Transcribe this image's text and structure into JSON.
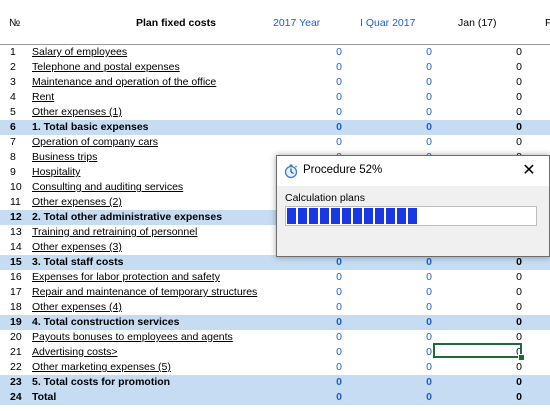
{
  "header": {
    "no": "№",
    "name": "Plan fixed costs",
    "col1": "2017 Year",
    "col2": "I Quar 2017",
    "col3": "Jan (17)",
    "col4": "F"
  },
  "rows": [
    {
      "no": "1",
      "name": "Salary of employees",
      "v1": "0",
      "v2": "0",
      "v3": "0",
      "bold": false
    },
    {
      "no": "2",
      "name": "Telephone and postal expenses",
      "v1": "0",
      "v2": "0",
      "v3": "0",
      "bold": false
    },
    {
      "no": "3",
      "name": "Maintenance and operation of the office",
      "v1": "0",
      "v2": "0",
      "v3": "0",
      "bold": false
    },
    {
      "no": "4",
      "name": "Rent",
      "v1": "0",
      "v2": "0",
      "v3": "0",
      "bold": false
    },
    {
      "no": "5",
      "name": "Other expenses (1)",
      "v1": "0",
      "v2": "0",
      "v3": "0",
      "bold": false
    },
    {
      "no": "6",
      "name": "1. Total basic expenses",
      "v1": "0",
      "v2": "0",
      "v3": "0",
      "bold": true
    },
    {
      "no": "7",
      "name": "Operation of company cars",
      "v1": "0",
      "v2": "0",
      "v3": "0",
      "bold": false
    },
    {
      "no": "8",
      "name": "Business trips",
      "v1": "0",
      "v2": "0",
      "v3": "0",
      "bold": false
    },
    {
      "no": "9",
      "name": "Hospitality",
      "v1": "0",
      "v2": "0",
      "v3": "0",
      "bold": false
    },
    {
      "no": "10",
      "name": "Consulting and auditing services",
      "v1": "0",
      "v2": "0",
      "v3": "0",
      "bold": false
    },
    {
      "no": "11",
      "name": "Other expenses (2)",
      "v1": "0",
      "v2": "0",
      "v3": "0",
      "bold": false
    },
    {
      "no": "12",
      "name": "2. Total other administrative expenses",
      "v1": "0",
      "v2": "0",
      "v3": "0",
      "bold": true
    },
    {
      "no": "13",
      "name": "Training and retraining of personnel",
      "v1": "0",
      "v2": "0",
      "v3": "0",
      "bold": false
    },
    {
      "no": "14",
      "name": "Other expenses (3)",
      "v1": "0",
      "v2": "0",
      "v3": "0",
      "bold": false
    },
    {
      "no": "15",
      "name": "3. Total staff costs",
      "v1": "0",
      "v2": "0",
      "v3": "0",
      "bold": true
    },
    {
      "no": "16",
      "name": "Expenses for labor protection and safety",
      "v1": "0",
      "v2": "0",
      "v3": "0",
      "bold": false
    },
    {
      "no": "17",
      "name": "Repair and maintenance of temporary structures",
      "v1": "0",
      "v2": "0",
      "v3": "0",
      "bold": false
    },
    {
      "no": "18",
      "name": "Other expenses (4)",
      "v1": "0",
      "v2": "0",
      "v3": "0",
      "bold": false
    },
    {
      "no": "19",
      "name": "4. Total construction services",
      "v1": "0",
      "v2": "0",
      "v3": "0",
      "bold": true
    },
    {
      "no": "20",
      "name": "Payouts bonuses to employees and agents",
      "v1": "0",
      "v2": "0",
      "v3": "0",
      "bold": false
    },
    {
      "no": "21",
      "name": "Advertising costs>",
      "v1": "0",
      "v2": "0",
      "v3": "0",
      "bold": false
    },
    {
      "no": "22",
      "name": "Other marketing expenses (5)",
      "v1": "0",
      "v2": "0",
      "v3": "0",
      "bold": false
    },
    {
      "no": "23",
      "name": "5. Total costs for promotion",
      "v1": "0",
      "v2": "0",
      "v3": "0",
      "bold": true
    },
    {
      "no": "24",
      "name": "Total",
      "v1": "0",
      "v2": "0",
      "v3": "0",
      "bold": true
    }
  ],
  "dialog": {
    "title": "Procedure 52%",
    "label": "Calculation plans",
    "progress": 0.52,
    "icon": "stopwatch-icon",
    "close_icon": "close-icon"
  },
  "colors": {
    "accent": "#1f5fd4",
    "row_highlight": "#c5dcf3",
    "progress": "#1a37e6",
    "selection": "#1e6b3a"
  }
}
